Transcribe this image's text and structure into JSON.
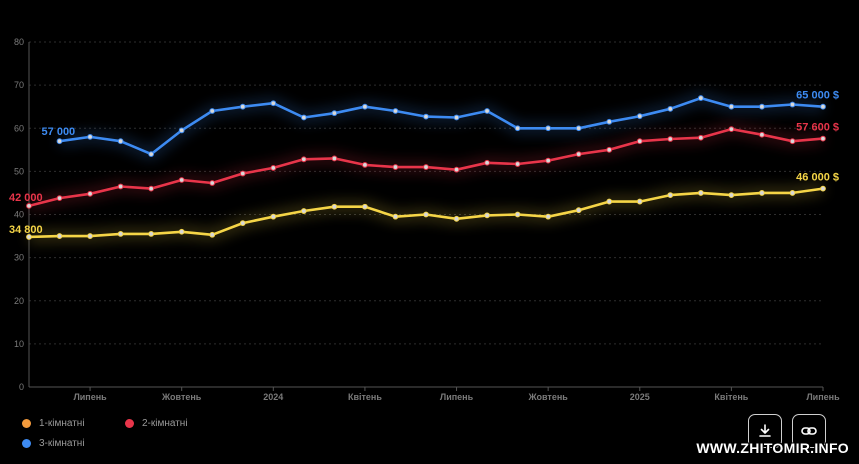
{
  "chart_data": {
    "type": "line",
    "ylim": [
      0,
      80
    ],
    "y_ticks": [
      0,
      10,
      20,
      30,
      40,
      50,
      60,
      70,
      80
    ],
    "x_tick_labels": [
      "Липень",
      "Жовтень",
      "2024",
      "Квітень",
      "Липень",
      "Жовтень",
      "2025",
      "Квітень",
      "Липень"
    ],
    "grid": "horizontal dotted",
    "legend_position": "bottom-left",
    "series": [
      {
        "name": "1-кімнатні",
        "color": "#f5d547",
        "legend_color": "#f39a3c",
        "values": [
          34.8,
          35.0,
          35.0,
          35.5,
          35.5,
          36.0,
          35.3,
          38.0,
          39.5,
          40.8,
          41.8,
          41.8,
          39.5,
          40.0,
          39.0,
          39.8,
          40.0,
          39.5,
          41.0,
          43.0,
          43.0,
          44.5,
          45.0,
          44.5,
          45.0,
          45.0,
          46.0
        ],
        "start_label": "34 800",
        "end_label": "46 000 $"
      },
      {
        "name": "2-кімнатні",
        "color": "#e8354a",
        "legend_color": "#e8354a",
        "values": [
          42.0,
          43.8,
          44.8,
          46.5,
          46.0,
          48.0,
          47.3,
          49.5,
          50.8,
          52.8,
          53.0,
          51.5,
          51.0,
          51.0,
          50.4,
          52.0,
          51.7,
          52.5,
          54.0,
          55.0,
          57.0,
          57.5,
          57.8,
          59.8,
          58.5,
          57.0,
          57.6
        ],
        "start_label": "42 000",
        "end_label": "57 600 $"
      },
      {
        "name": "3-кімнатні",
        "color": "#3d8bf2",
        "legend_color": "#3d8bf2",
        "values": [
          null,
          57.0,
          58.0,
          57.0,
          54.0,
          59.5,
          64.0,
          65.0,
          65.8,
          62.5,
          63.5,
          65.0,
          64.0,
          62.7,
          62.5,
          64.0,
          60.0,
          60.0,
          60.0,
          61.5,
          62.8,
          64.5,
          67.0,
          65.0,
          65.0,
          65.5,
          65.0
        ],
        "start_label": "57 000",
        "end_label": "65 000 $"
      }
    ]
  },
  "buttons": {
    "download_icon": "download-icon",
    "link_icon": "link-icon"
  },
  "watermark": "WWW.ZHITOMIR.INFO"
}
